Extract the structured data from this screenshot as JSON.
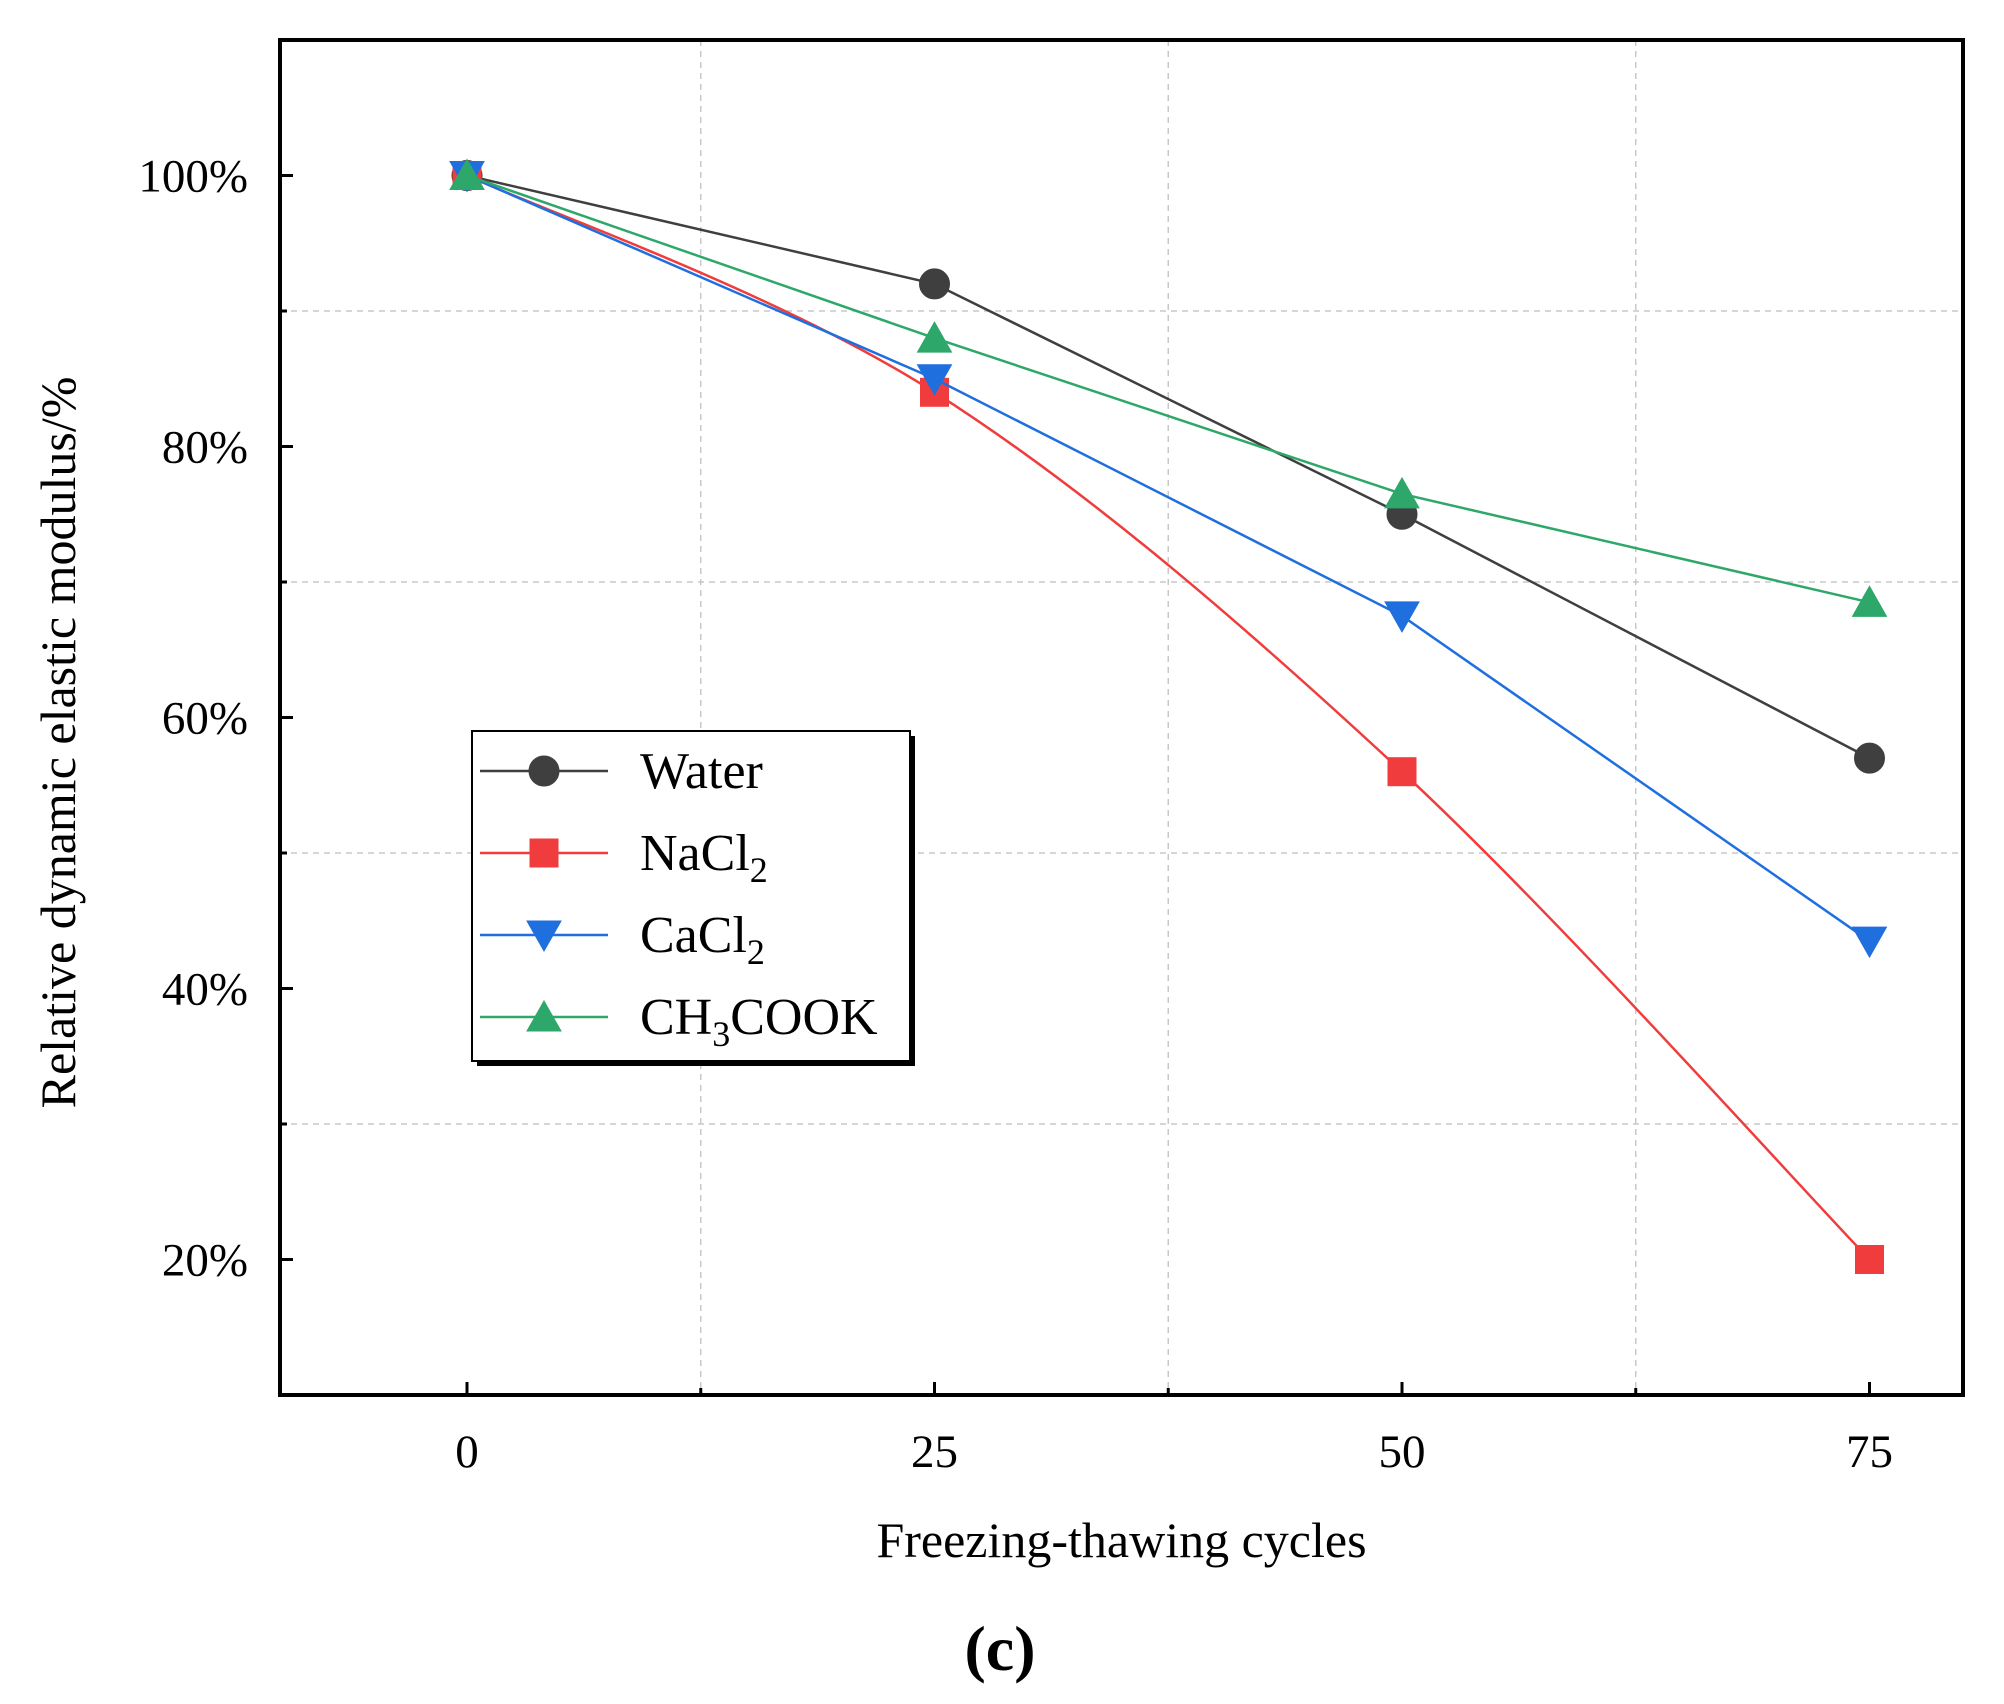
{
  "chart_data": {
    "type": "line",
    "title": "",
    "xlabel": "Freezing-thawing cycles",
    "ylabel": "Relative dynamic elastic modulus/%",
    "x": [
      0,
      25,
      50,
      75
    ],
    "xlim": [
      -10,
      80
    ],
    "ylim": [
      10,
      110
    ],
    "xticks": [
      "0",
      "25",
      "50",
      "75"
    ],
    "yticks": [
      "20%",
      "40%",
      "60%",
      "80%",
      "100%"
    ],
    "grid": true,
    "legend_position": "center-left",
    "series": [
      {
        "name": "Water",
        "base": "Water",
        "sub": "",
        "tail": "",
        "marker": "circle",
        "color": "#3f3f3f",
        "values": [
          100,
          92,
          75,
          57
        ]
      },
      {
        "name": "NaCl2",
        "base": "NaCl",
        "sub": "2",
        "tail": "",
        "marker": "square",
        "color": "#f03c3c",
        "values": [
          100,
          84,
          56,
          20
        ]
      },
      {
        "name": "CaCl2",
        "base": "CaCl",
        "sub": "2",
        "tail": "",
        "marker": "triangle-down",
        "color": "#1f6fdf",
        "values": [
          100,
          85,
          67.5,
          43.5
        ]
      },
      {
        "name": "CH3COOK",
        "base": "CH",
        "sub": "3",
        "tail": "COOK",
        "marker": "triangle-up",
        "color": "#2ea86a",
        "values": [
          100,
          88,
          76.5,
          68.5
        ]
      }
    ],
    "panel_label": "(c)"
  }
}
